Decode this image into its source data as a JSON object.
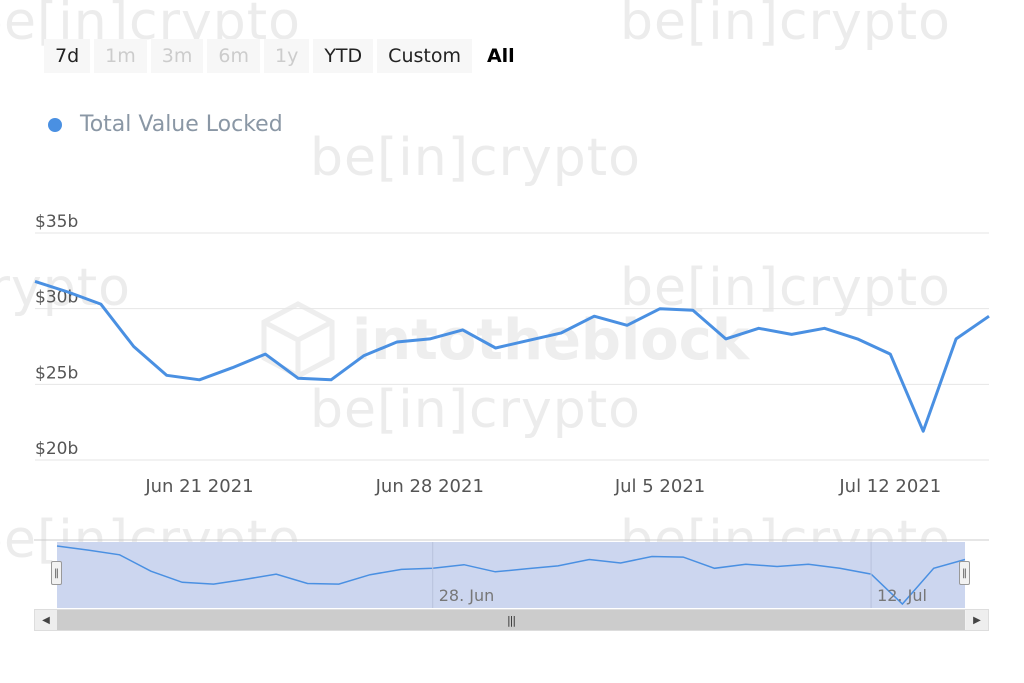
{
  "range_selector": {
    "buttons": [
      {
        "label": "7d",
        "state": "normal"
      },
      {
        "label": "1m",
        "state": "disabled"
      },
      {
        "label": "3m",
        "state": "disabled"
      },
      {
        "label": "6m",
        "state": "disabled"
      },
      {
        "label": "1y",
        "state": "disabled"
      },
      {
        "label": "YTD",
        "state": "normal"
      },
      {
        "label": "Custom",
        "state": "normal"
      },
      {
        "label": "All",
        "state": "active"
      }
    ]
  },
  "watermarks": {
    "brand": "be[in]crypto",
    "center": "intotheblock"
  },
  "colors": {
    "series": "#4a90e2",
    "navigator_fill": "#ccd6ef",
    "grid": "#e6e6e6",
    "axis_text": "#555555",
    "legend_text": "#8a97a5"
  },
  "chart_data": {
    "type": "line",
    "title": "",
    "legend": {
      "entries": [
        "Total Value Locked"
      ],
      "placement": "top-left"
    },
    "series": [
      {
        "name": "Total Value Locked",
        "x": [
          "2021-06-16",
          "2021-06-17",
          "2021-06-18",
          "2021-06-19",
          "2021-06-20",
          "2021-06-21",
          "2021-06-22",
          "2021-06-23",
          "2021-06-24",
          "2021-06-25",
          "2021-06-26",
          "2021-06-27",
          "2021-06-28",
          "2021-06-29",
          "2021-06-30",
          "2021-07-01",
          "2021-07-02",
          "2021-07-03",
          "2021-07-04",
          "2021-07-05",
          "2021-07-06",
          "2021-07-07",
          "2021-07-08",
          "2021-07-09",
          "2021-07-10",
          "2021-07-11",
          "2021-07-12",
          "2021-07-13",
          "2021-07-14",
          "2021-07-15"
        ],
        "values": [
          31.8,
          31.1,
          30.3,
          27.5,
          25.6,
          25.3,
          26.1,
          27.0,
          25.4,
          25.3,
          26.9,
          27.8,
          28.0,
          28.6,
          27.4,
          27.9,
          28.4,
          29.5,
          28.9,
          30.0,
          29.9,
          28.0,
          28.7,
          28.3,
          28.7,
          28.0,
          27.0,
          21.9,
          28.0,
          29.5
        ]
      }
    ],
    "x_ticks": [
      {
        "date": "2021-06-21",
        "label": "Jun 21 2021"
      },
      {
        "date": "2021-06-28",
        "label": "Jun 28 2021"
      },
      {
        "date": "2021-07-05",
        "label": "Jul 5 2021"
      },
      {
        "date": "2021-07-12",
        "label": "Jul 12 2021"
      }
    ],
    "y_ticks": [
      {
        "value": 20,
        "label": "$20b"
      },
      {
        "value": 25,
        "label": "$25b"
      },
      {
        "value": 30,
        "label": "$30b"
      },
      {
        "value": 35,
        "label": "$35b"
      }
    ],
    "xlim": [
      "2021-06-16",
      "2021-07-15"
    ],
    "ylim": [
      20,
      35
    ],
    "grid": true,
    "navigator": {
      "x_ticks": [
        {
          "date": "2021-06-28",
          "label": "28. Jun"
        },
        {
          "date": "2021-07-12",
          "label": "12. Jul"
        }
      ]
    }
  }
}
